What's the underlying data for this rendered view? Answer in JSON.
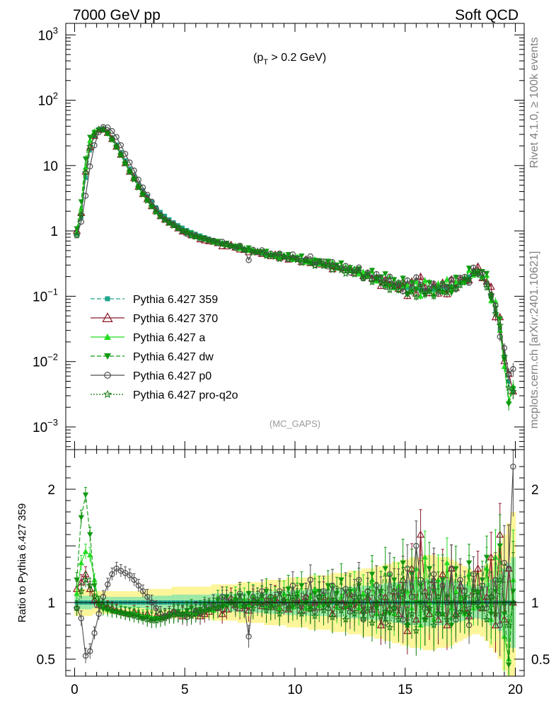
{
  "header": {
    "left": "7000 GeV pp",
    "right": "Soft QCD"
  },
  "side_labels": {
    "top": "Rivet 4.1.0, ≥ 100k events",
    "bottom": "mcplots.cern.ch [arXiv:2401.10621]"
  },
  "chart_data": {
    "type": "line",
    "cut_label": "(p_T > 0.2 GeV)",
    "cut_prefix": "(p",
    "cut_sub": "T",
    "cut_suffix": " > 0.2 GeV)",
    "analysis_label": "(MC_GAPS)",
    "xlabel": "",
    "ylabel": "",
    "ratio_ylabel": "Ratio to Pythia 6.427 359",
    "xlim": [
      -0.4,
      20.4
    ],
    "ylim_main": [
      0.00045,
      1500
    ],
    "ylim_ratio": [
      0.35,
      2.35
    ],
    "main_yticks": [
      {
        "v": 1000,
        "base": "10",
        "exp": "3"
      },
      {
        "v": 100,
        "base": "10",
        "exp": "2"
      },
      {
        "v": 10,
        "base": "10",
        "exp": ""
      },
      {
        "v": 1,
        "base": "1",
        "exp": ""
      },
      {
        "v": 0.1,
        "base": "10",
        "exp": "−1"
      },
      {
        "v": 0.01,
        "base": "10",
        "exp": "−2"
      },
      {
        "v": 0.001,
        "base": "10",
        "exp": "−3"
      }
    ],
    "ratio_yticks": [
      {
        "v": 2,
        "label": "2"
      },
      {
        "v": 1,
        "label": "1"
      },
      {
        "v": 0.5,
        "label": "0.5"
      }
    ],
    "xticks": [
      {
        "v": 0,
        "label": "0"
      },
      {
        "v": 5,
        "label": "5"
      },
      {
        "v": 10,
        "label": "10"
      },
      {
        "v": 15,
        "label": "15"
      },
      {
        "v": 20,
        "label": "20"
      }
    ],
    "reference_x": [
      0.1,
      0.3,
      0.5,
      0.7,
      0.9,
      1.1,
      1.3,
      1.5,
      1.7,
      1.9,
      2.1,
      2.3,
      2.5,
      2.7,
      2.9,
      3.1,
      3.3,
      3.5,
      3.7,
      3.9,
      4.1,
      4.3,
      4.5,
      4.7,
      4.9,
      5.1,
      5.3,
      5.5,
      5.7,
      5.9,
      6.1,
      6.3,
      6.5,
      6.7,
      6.9,
      7.1,
      7.3,
      7.5,
      7.7,
      7.9,
      8.1,
      8.3,
      8.5,
      8.7,
      8.9,
      9.1,
      9.3,
      9.5,
      9.7,
      9.9,
      10.1,
      10.3,
      10.5,
      10.7,
      10.9,
      11.1,
      11.3,
      11.5,
      11.7,
      11.9,
      12.1,
      12.3,
      12.5,
      12.7,
      12.9,
      13.1,
      13.3,
      13.5,
      13.7,
      13.9,
      14.1,
      14.3,
      14.5,
      14.7,
      14.9,
      15.1,
      15.3,
      15.5,
      15.7,
      15.9,
      16.1,
      16.3,
      16.5,
      16.7,
      16.9,
      17.1,
      17.3,
      17.5,
      17.7,
      17.9,
      18.1,
      18.3,
      18.5,
      18.7,
      18.9,
      19.1,
      19.3,
      19.5,
      19.7,
      19.9
    ],
    "reference_y": [
      0.9,
      1.6,
      6.5,
      17,
      28,
      36,
      37,
      33,
      27,
      21,
      16,
      12,
      9,
      7,
      5.3,
      4.2,
      3.4,
      2.8,
      2.3,
      1.95,
      1.7,
      1.5,
      1.35,
      1.22,
      1.12,
      1.03,
      0.96,
      0.9,
      0.85,
      0.8,
      0.76,
      0.72,
      0.68,
      0.65,
      0.62,
      0.59,
      0.57,
      0.55,
      0.53,
      0.51,
      0.49,
      0.475,
      0.46,
      0.445,
      0.43,
      0.42,
      0.41,
      0.4,
      0.39,
      0.38,
      0.37,
      0.36,
      0.35,
      0.34,
      0.33,
      0.32,
      0.31,
      0.3,
      0.29,
      0.28,
      0.27,
      0.26,
      0.25,
      0.24,
      0.23,
      0.22,
      0.21,
      0.2,
      0.19,
      0.18,
      0.17,
      0.16,
      0.15,
      0.145,
      0.14,
      0.135,
      0.13,
      0.13,
      0.125,
      0.125,
      0.125,
      0.125,
      0.13,
      0.13,
      0.135,
      0.14,
      0.15,
      0.16,
      0.18,
      0.2,
      0.22,
      0.22,
      0.2,
      0.16,
      0.1,
      0.06,
      0.03,
      0.012,
      0.005,
      0.0035
    ],
    "reference_band_rel": [
      0.06,
      0.06,
      0.06,
      0.06,
      0.05,
      0.05,
      0.05,
      0.05,
      0.05,
      0.05,
      0.05,
      0.05,
      0.05,
      0.05,
      0.05,
      0.05,
      0.06,
      0.06,
      0.06,
      0.06,
      0.06,
      0.06,
      0.07,
      0.07,
      0.07,
      0.07,
      0.07,
      0.07,
      0.07,
      0.07,
      0.07,
      0.08,
      0.08,
      0.08,
      0.08,
      0.08,
      0.08,
      0.09,
      0.09,
      0.09,
      0.09,
      0.09,
      0.09,
      0.1,
      0.1,
      0.1,
      0.1,
      0.1,
      0.11,
      0.11,
      0.11,
      0.11,
      0.11,
      0.12,
      0.12,
      0.12,
      0.12,
      0.12,
      0.13,
      0.13,
      0.13,
      0.13,
      0.14,
      0.14,
      0.14,
      0.15,
      0.15,
      0.15,
      0.16,
      0.16,
      0.17,
      0.17,
      0.18,
      0.18,
      0.19,
      0.19,
      0.2,
      0.2,
      0.2,
      0.21,
      0.21,
      0.21,
      0.2,
      0.2,
      0.2,
      0.19,
      0.18,
      0.17,
      0.16,
      0.15,
      0.14,
      0.14,
      0.15,
      0.17,
      0.2,
      0.22,
      0.25,
      0.3,
      0.35,
      0.4
    ],
    "series": [
      {
        "name": "Pythia 6.427 359",
        "color": "#1fa58c",
        "dash": "6,3",
        "marker": "square",
        "ratio": [
          1.0,
          1.0,
          1.0,
          1.0,
          1.0,
          1.0,
          1.0,
          1.0,
          1.0,
          1.0,
          1.0,
          1.0,
          1.0,
          1.0,
          1.0,
          1.0,
          1.0,
          1.0,
          1.0,
          1.0,
          1.0,
          1.0,
          1.0,
          1.0,
          1.0,
          1.0,
          1.0,
          1.0,
          1.0,
          1.0,
          1.0,
          1.0,
          1.0,
          1.0,
          1.0,
          1.0,
          1.0,
          1.0,
          1.0,
          1.0,
          1.0,
          1.0,
          1.0,
          1.0,
          1.0,
          1.0,
          1.0,
          1.0,
          1.0,
          1.0,
          1.0,
          1.0,
          1.0,
          1.0,
          1.0,
          1.0,
          1.0,
          1.0,
          1.0,
          1.0,
          1.0,
          1.0,
          1.0,
          1.0,
          1.0,
          1.0,
          1.0,
          1.0,
          1.0,
          1.0,
          1.0,
          1.0,
          1.0,
          1.0,
          1.0,
          1.0,
          1.0,
          1.0,
          1.0,
          1.0,
          1.0,
          1.0,
          1.0,
          1.0,
          1.0,
          1.0,
          1.0,
          1.0,
          1.0,
          1.0,
          1.0,
          1.0,
          1.0,
          1.0,
          1.0,
          1.0,
          1.0,
          1.0,
          1.0,
          1.0
        ]
      },
      {
        "name": "Pythia 6.427 370",
        "color": "#8b1a2a",
        "dash": "",
        "marker": "triangle-open",
        "ratio": [
          1.12,
          1.18,
          1.25,
          1.12,
          1.02,
          0.98,
          0.97,
          0.96,
          0.95,
          0.93,
          0.92,
          0.91,
          0.9,
          0.92,
          0.9,
          0.88,
          0.9,
          0.86,
          0.88,
          0.87,
          0.88,
          0.9,
          0.92,
          0.9,
          0.88,
          0.92,
          0.9,
          0.93,
          0.88,
          0.9,
          0.92,
          0.95,
          0.96,
          0.9,
          0.94,
          1.04,
          0.98,
          0.95,
          0.97,
          0.93,
          1.02,
          1.0,
          0.97,
          1.02,
          0.96,
          1.04,
          0.95,
          1.02,
          0.94,
          1.0,
          1.03,
          0.93,
          1.05,
          0.95,
          1.0,
          0.96,
          1.05,
          1.02,
          0.9,
          0.98,
          1.02,
          0.97,
          1.08,
          0.95,
          1.0,
          0.93,
          1.05,
          0.94,
          1.0,
          0.8,
          1.05,
          0.95,
          1.1,
          0.9,
          1.2,
          0.75,
          1.3,
          0.85,
          1.6,
          1.1,
          0.9,
          1.2,
          0.85,
          1.25,
          0.8,
          1.3,
          0.9,
          1.15,
          0.95,
          0.88,
          1.1,
          1.3,
          0.95,
          1.05,
          1.4,
          0.8,
          1.6,
          0.85,
          1.3,
          1.0
        ]
      },
      {
        "name": "Pythia 6.427 a",
        "color": "#22dd22",
        "dash": "",
        "marker": "triangle",
        "ratio": [
          1.08,
          1.35,
          1.45,
          1.42,
          1.2,
          1.0,
          0.96,
          0.94,
          0.93,
          0.92,
          0.92,
          0.91,
          0.9,
          0.91,
          0.9,
          0.88,
          0.89,
          0.87,
          0.86,
          0.87,
          0.88,
          0.9,
          0.91,
          0.9,
          0.89,
          0.92,
          0.91,
          0.9,
          0.92,
          0.94,
          0.95,
          0.93,
          0.97,
          1.02,
          0.98,
          1.0,
          1.05,
          0.97,
          1.03,
          0.98,
          1.06,
          1.0,
          1.04,
          0.97,
          1.05,
          1.0,
          0.95,
          1.08,
          1.02,
          0.96,
          1.1,
          1.0,
          0.95,
          1.05,
          1.12,
          0.97,
          1.08,
          1.0,
          1.15,
          0.96,
          1.05,
          1.1,
          0.98,
          1.12,
          0.95,
          1.08,
          1.0,
          1.2,
          0.9,
          1.1,
          0.85,
          1.25,
          0.9,
          1.15,
          1.0,
          1.1,
          0.95,
          1.3,
          0.8,
          1.4,
          1.0,
          0.85,
          1.2,
          0.9,
          1.35,
          0.95,
          1.1,
          1.05,
          0.9,
          1.25,
          0.95,
          1.1,
          1.0,
          1.3,
          0.85,
          1.4,
          1.0,
          0.7,
          0.5,
          1.2
        ]
      },
      {
        "name": "Pythia 6.427 dw",
        "color": "#119911",
        "dash": "6,3",
        "marker": "triangle-down",
        "ratio": [
          1.2,
          1.75,
          1.95,
          1.6,
          1.15,
          0.97,
          0.94,
          0.93,
          0.92,
          0.92,
          0.91,
          0.9,
          0.9,
          0.89,
          0.88,
          0.86,
          0.87,
          0.85,
          0.86,
          0.86,
          0.87,
          0.88,
          0.9,
          0.92,
          0.9,
          0.93,
          0.95,
          0.92,
          0.94,
          0.97,
          0.93,
          0.98,
          1.02,
          0.96,
          1.05,
          1.0,
          1.02,
          1.06,
          0.96,
          1.08,
          1.0,
          0.98,
          1.05,
          1.1,
          0.95,
          1.03,
          1.08,
          1.0,
          1.12,
          0.96,
          1.05,
          1.15,
          1.0,
          0.95,
          1.08,
          1.1,
          0.97,
          1.15,
          1.02,
          1.08,
          1.2,
          0.95,
          1.1,
          1.0,
          1.15,
          0.9,
          1.05,
          1.25,
          0.95,
          1.1,
          1.3,
          0.9,
          1.2,
          1.05,
          1.35,
          0.8,
          1.25,
          1.0,
          1.15,
          0.85,
          1.3,
          1.1,
          0.9,
          1.2,
          1.05,
          0.8,
          1.3,
          1.0,
          0.9,
          1.35,
          1.1,
          0.95,
          1.2,
          1.4,
          0.9,
          1.1,
          1.5,
          0.9,
          0.45,
          1.1
        ]
      },
      {
        "name": "Pythia 6.427 p0",
        "color": "#4d4d4d",
        "dash": "",
        "marker": "circle-open",
        "ratio": [
          0.95,
          0.86,
          0.53,
          0.57,
          0.73,
          0.9,
          1.05,
          1.16,
          1.25,
          1.3,
          1.28,
          1.26,
          1.24,
          1.2,
          1.15,
          1.1,
          1.05,
          1.0,
          0.95,
          0.9,
          0.88,
          0.9,
          0.92,
          0.9,
          0.89,
          0.87,
          0.9,
          0.93,
          0.9,
          0.95,
          0.96,
          0.98,
          0.95,
          1.05,
          1.02,
          1.0,
          0.96,
          1.08,
          0.97,
          0.7,
          1.05,
          1.0,
          1.1,
          0.96,
          1.05,
          0.98,
          1.1,
          1.0,
          0.95,
          1.15,
          1.0,
          0.96,
          1.05,
          1.2,
          0.92,
          1.05,
          1.1,
          0.95,
          1.15,
          1.0,
          0.98,
          1.12,
          0.92,
          1.05,
          1.2,
          0.85,
          1.1,
          0.9,
          1.15,
          1.05,
          0.82,
          1.25,
          0.95,
          1.1,
          0.85,
          1.3,
          1.05,
          1.5,
          1.2,
          0.95,
          1.05,
          1.25,
          0.9,
          1.15,
          1.0,
          1.3,
          0.85,
          1.2,
          1.1,
          0.8,
          1.25,
          1.0,
          1.15,
          0.95,
          1.05,
          1.2,
          0.8,
          1.35,
          1.3,
          2.2
        ]
      },
      {
        "name": "Pythia 6.427 pro-q2o",
        "color": "#117711",
        "dash": "2,2",
        "marker": "star",
        "ratio": [
          0.95,
          1.1,
          1.2,
          1.15,
          1.05,
          1.0,
          0.97,
          0.95,
          0.93,
          0.92,
          0.91,
          0.9,
          0.89,
          0.88,
          0.87,
          0.86,
          0.85,
          0.84,
          0.84,
          0.85,
          0.86,
          0.88,
          0.89,
          0.9,
          0.9,
          0.9,
          0.88,
          0.9,
          0.92,
          0.93,
          0.94,
          0.95,
          0.96,
          0.97,
          0.98,
          1.0,
          0.98,
          1.02,
          0.97,
          1.0,
          0.95,
          1.03,
          0.98,
          0.93,
          1.0,
          0.96,
          0.9,
          1.02,
          0.95,
          1.05,
          0.97,
          0.9,
          1.0,
          0.94,
          0.88,
          1.05,
          0.93,
          0.98,
          0.87,
          1.0,
          0.93,
          0.85,
          0.98,
          0.9,
          1.05,
          0.86,
          0.95,
          0.82,
          1.0,
          0.88,
          0.92,
          0.78,
          0.95,
          0.85,
          1.1,
          0.8,
          0.9,
          0.75,
          1.0,
          0.85,
          0.95,
          0.8,
          1.05,
          0.9,
          0.85,
          1.0,
          0.88,
          0.92,
          1.05,
          0.9,
          1.0,
          1.1,
          0.95,
          0.85,
          1.05,
          0.9,
          1.2,
          1.0,
          0.8,
          1.0
        ]
      }
    ]
  }
}
